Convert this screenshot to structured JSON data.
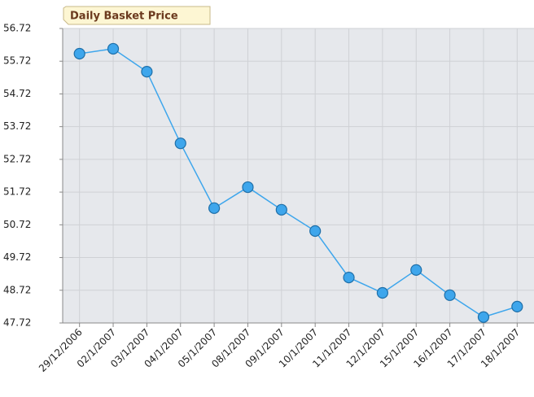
{
  "chart_data": {
    "type": "line",
    "title": "Daily Basket Price",
    "categories": [
      "29/12/2006",
      "02/1/2007",
      "03/1/2007",
      "04/1/2007",
      "05/1/2007",
      "08/1/2007",
      "09/1/2007",
      "10/1/2007",
      "11/1/2007",
      "12/1/2007",
      "15/1/2007",
      "16/1/2007",
      "17/1/2007",
      "18/1/2007"
    ],
    "values": [
      55.95,
      56.1,
      55.4,
      53.21,
      51.23,
      51.87,
      51.18,
      50.53,
      49.11,
      48.64,
      49.34,
      48.57,
      47.9,
      48.22
    ],
    "color": "#3ea6ec",
    "ylim": [
      47.72,
      56.72
    ],
    "yticks": [
      47.72,
      48.72,
      49.72,
      50.72,
      51.72,
      52.72,
      53.72,
      54.72,
      55.72,
      56.72
    ],
    "grid": true
  }
}
